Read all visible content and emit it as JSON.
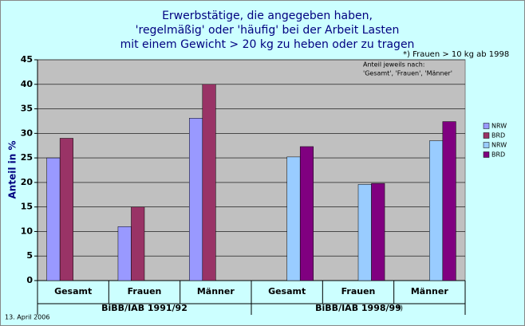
{
  "chart_data": {
    "type": "bar",
    "title": [
      "Erwerbstätige, die angegeben haben,",
      "'regelmäßig' oder 'häufig' bei der Arbeit Lasten",
      "mit einem Gewicht > 20 kg zu heben oder zu tragen"
    ],
    "annotation": "*) Frauen > 10 kg ab 1998",
    "note": [
      "Anteil jeweils nach:",
      "'Gesamt', 'Frauen', 'Männer'"
    ],
    "date": "13. April 2006",
    "y_label": "Anteil in %",
    "categories": [
      "Gesamt",
      "Frauen",
      "Männer",
      "Gesamt",
      "Frauen",
      "Männer"
    ],
    "category_groups": [
      "BiBB/IAB 1991/92",
      "BiBB/IAB 1998/99"
    ],
    "group_note": "*)",
    "series": [
      {
        "name": "NRW",
        "color": "#9999ff",
        "values": [
          25,
          11,
          33.1,
          null,
          null,
          null
        ]
      },
      {
        "name": "BRD",
        "color": "#993366",
        "values": [
          29,
          15,
          40,
          null,
          null,
          null
        ]
      },
      {
        "name": "NRW",
        "color": "#99ccff",
        "values": [
          null,
          null,
          null,
          25.2,
          19.6,
          28.5
        ]
      },
      {
        "name": "BRD",
        "color": "#800080",
        "values": [
          null,
          null,
          null,
          27.3,
          19.8,
          32.4
        ]
      }
    ],
    "ylim": [
      0,
      45
    ],
    "yticks": [
      0,
      5,
      10,
      15,
      20,
      25,
      30,
      35,
      40,
      45
    ],
    "grid": true
  }
}
